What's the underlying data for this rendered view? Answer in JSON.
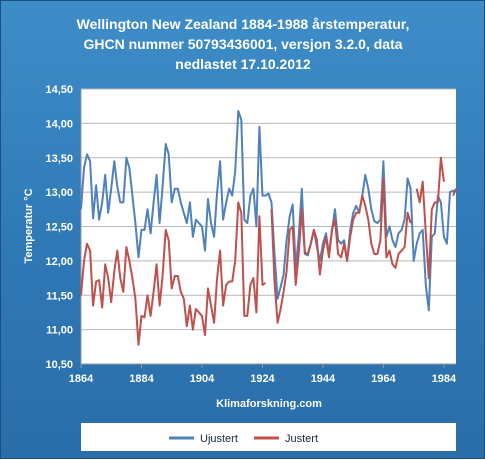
{
  "chart_data": {
    "type": "line",
    "title_lines": [
      "Wellington New Zealand 1884-1988 årstemperatur,",
      "GHCN nummer 50793436001, versjon 3.2.0,  data",
      "nedlastet 17.10.2012"
    ],
    "xlabel": "Klimaforskning.com",
    "ylabel": "Temperatur °C",
    "xlim": [
      1864,
      1988
    ],
    "ylim": [
      10.5,
      14.5
    ],
    "x_ticks": [
      "1864",
      "1884",
      "1904",
      "1924",
      "1944",
      "1964",
      "1984"
    ],
    "y_ticks": [
      "10,50",
      "11,00",
      "11,50",
      "12,00",
      "12,50",
      "13,00",
      "13,50",
      "14,00",
      "14,50"
    ],
    "grid": true,
    "legend_position": "bottom",
    "series": [
      {
        "name": "Ujustert",
        "color": "#4f81bd",
        "points": [
          [
            1864,
            12.75
          ],
          [
            1865,
            13.35
          ],
          [
            1866,
            13.55
          ],
          [
            1867,
            13.45
          ],
          [
            1868,
            12.62
          ],
          [
            1869,
            13.1
          ],
          [
            1870,
            12.6
          ],
          [
            1871,
            12.85
          ],
          [
            1872,
            13.25
          ],
          [
            1873,
            12.7
          ],
          [
            1874,
            13.05
          ],
          [
            1875,
            13.45
          ],
          [
            1876,
            13.08
          ],
          [
            1877,
            12.85
          ],
          [
            1878,
            12.85
          ],
          [
            1879,
            13.5
          ],
          [
            1880,
            13.35
          ],
          [
            1881,
            12.95
          ],
          [
            1882,
            12.55
          ],
          [
            1883,
            12.05
          ],
          [
            1884,
            12.45
          ],
          [
            1885,
            12.45
          ],
          [
            1886,
            12.75
          ],
          [
            1887,
            12.4
          ],
          [
            1888,
            12.85
          ],
          [
            1889,
            13.25
          ],
          [
            1890,
            12.55
          ],
          [
            1891,
            13.1
          ],
          [
            1892,
            13.7
          ],
          [
            1893,
            13.55
          ],
          [
            1894,
            12.85
          ],
          [
            1895,
            13.05
          ],
          [
            1896,
            13.05
          ],
          [
            1897,
            12.85
          ],
          [
            1898,
            12.7
          ],
          [
            1899,
            12.55
          ],
          [
            1900,
            12.85
          ],
          [
            1901,
            12.35
          ],
          [
            1902,
            12.6
          ],
          [
            1903,
            12.55
          ],
          [
            1904,
            12.5
          ],
          [
            1905,
            12.15
          ],
          [
            1906,
            12.9
          ],
          [
            1907,
            12.55
          ],
          [
            1908,
            12.35
          ],
          [
            1909,
            13.0
          ],
          [
            1910,
            13.45
          ],
          [
            1911,
            12.6
          ],
          [
            1912,
            12.85
          ],
          [
            1913,
            13.05
          ],
          [
            1914,
            12.95
          ],
          [
            1915,
            13.3
          ],
          [
            1916,
            14.18
          ],
          [
            1917,
            14.05
          ],
          [
            1918,
            12.6
          ],
          [
            1919,
            12.55
          ],
          [
            1920,
            12.95
          ],
          [
            1921,
            13.05
          ],
          [
            1922,
            12.5
          ],
          [
            1923,
            13.95
          ],
          [
            1924,
            12.95
          ],
          [
            1925,
            12.95
          ],
          [
            1926,
            12.98
          ],
          [
            1927,
            12.85
          ],
          [
            1928,
            12.1
          ],
          [
            1929,
            11.45
          ],
          [
            1930,
            11.62
          ],
          [
            1931,
            11.8
          ],
          [
            1932,
            12.3
          ],
          [
            1933,
            12.65
          ],
          [
            1934,
            12.82
          ],
          [
            1935,
            11.9
          ],
          [
            1936,
            12.35
          ],
          [
            1937,
            13.05
          ],
          [
            1938,
            12.1
          ],
          [
            1939,
            12.08
          ],
          [
            1940,
            12.25
          ],
          [
            1941,
            12.45
          ],
          [
            1942,
            12.2
          ],
          [
            1943,
            12.0
          ],
          [
            1944,
            12.25
          ],
          [
            1945,
            12.4
          ],
          [
            1946,
            12.1
          ],
          [
            1947,
            12.45
          ],
          [
            1948,
            12.75
          ],
          [
            1949,
            12.3
          ],
          [
            1950,
            12.25
          ],
          [
            1951,
            12.3
          ],
          [
            1952,
            12.0
          ],
          [
            1953,
            12.45
          ],
          [
            1954,
            12.7
          ],
          [
            1955,
            12.8
          ],
          [
            1956,
            12.7
          ],
          [
            1957,
            12.95
          ],
          [
            1958,
            13.25
          ],
          [
            1959,
            13.05
          ],
          [
            1960,
            12.75
          ],
          [
            1961,
            12.58
          ],
          [
            1962,
            12.55
          ],
          [
            1963,
            12.6
          ],
          [
            1964,
            13.45
          ],
          [
            1965,
            12.35
          ],
          [
            1966,
            12.5
          ],
          [
            1967,
            12.3
          ],
          [
            1968,
            12.2
          ],
          [
            1969,
            12.4
          ],
          [
            1970,
            12.45
          ],
          [
            1971,
            12.6
          ],
          [
            1972,
            13.2
          ],
          [
            1973,
            13.05
          ],
          [
            1974,
            12.0
          ],
          [
            1975,
            12.25
          ],
          [
            1976,
            12.4
          ],
          [
            1977,
            12.45
          ],
          [
            1978,
            11.65
          ],
          [
            1979,
            11.28
          ],
          [
            1980,
            12.35
          ],
          [
            1981,
            12.4
          ],
          [
            1982,
            12.95
          ],
          [
            1983,
            12.85
          ],
          [
            1984,
            12.35
          ],
          [
            1985,
            12.25
          ],
          [
            1986,
            13.0
          ],
          [
            1987,
            13.02
          ],
          [
            1988,
            13.02
          ]
        ]
      },
      {
        "name": "Justert",
        "color": "#c0504d",
        "points": [
          [
            1864,
            11.5
          ],
          [
            1865,
            12.0
          ],
          [
            1866,
            12.25
          ],
          [
            1867,
            12.15
          ],
          [
            1868,
            11.35
          ],
          [
            1869,
            11.7
          ],
          [
            1870,
            11.72
          ],
          [
            1871,
            11.32
          ],
          [
            1872,
            11.95
          ],
          [
            1873,
            11.75
          ],
          [
            1874,
            11.4
          ],
          [
            1875,
            11.85
          ],
          [
            1876,
            12.15
          ],
          [
            1877,
            11.75
          ],
          [
            1878,
            11.55
          ],
          [
            1879,
            12.2
          ],
          [
            1880,
            12.0
          ],
          [
            1881,
            11.75
          ],
          [
            1882,
            11.45
          ],
          [
            1883,
            10.78
          ],
          [
            1884,
            11.2
          ],
          [
            1885,
            11.18
          ],
          [
            1886,
            11.5
          ],
          [
            1887,
            11.2
          ],
          [
            1888,
            11.55
          ],
          [
            1889,
            11.95
          ],
          [
            1890,
            11.35
          ],
          [
            1891,
            11.8
          ],
          [
            1892,
            12.45
          ],
          [
            1893,
            12.3
          ],
          [
            1894,
            11.6
          ],
          [
            1895,
            11.78
          ],
          [
            1896,
            11.78
          ],
          [
            1897,
            11.55
          ],
          [
            1898,
            11.45
          ],
          [
            1899,
            11.05
          ],
          [
            1900,
            11.35
          ],
          [
            1901,
            11.0
          ],
          [
            1902,
            11.3
          ],
          [
            1903,
            11.25
          ],
          [
            1904,
            11.2
          ],
          [
            1905,
            10.92
          ],
          [
            1906,
            11.6
          ],
          [
            1907,
            11.35
          ],
          [
            1908,
            11.1
          ],
          [
            1909,
            11.75
          ],
          [
            1910,
            12.15
          ],
          [
            1911,
            11.35
          ],
          [
            1912,
            11.65
          ],
          [
            1913,
            11.7
          ],
          [
            1914,
            11.7
          ],
          [
            1915,
            12.0
          ],
          [
            1916,
            12.85
          ],
          [
            1917,
            12.7
          ],
          [
            1918,
            11.2
          ],
          [
            1919,
            11.2
          ],
          [
            1920,
            11.65
          ],
          [
            1921,
            11.75
          ],
          [
            1922,
            11.25
          ],
          [
            1923,
            12.65
          ],
          [
            1924,
            11.65
          ],
          [
            1925,
            11.68
          ],
          [
            1926,
            null
          ],
          [
            1927,
            12.75
          ],
          [
            1928,
            11.7
          ],
          [
            1929,
            11.1
          ],
          [
            1930,
            11.3
          ],
          [
            1931,
            11.55
          ],
          [
            1932,
            11.85
          ],
          [
            1933,
            12.45
          ],
          [
            1934,
            12.5
          ],
          [
            1935,
            11.65
          ],
          [
            1936,
            12.1
          ],
          [
            1937,
            12.75
          ],
          [
            1938,
            12.12
          ],
          [
            1939,
            12.1
          ],
          [
            1940,
            12.25
          ],
          [
            1941,
            12.45
          ],
          [
            1942,
            12.3
          ],
          [
            1943,
            11.8
          ],
          [
            1944,
            12.15
          ],
          [
            1945,
            12.35
          ],
          [
            1946,
            12.05
          ],
          [
            1947,
            12.45
          ],
          [
            1948,
            12.6
          ],
          [
            1949,
            12.1
          ],
          [
            1950,
            12.05
          ],
          [
            1951,
            12.25
          ],
          [
            1952,
            12.0
          ],
          [
            1953,
            12.35
          ],
          [
            1954,
            12.6
          ],
          [
            1955,
            12.7
          ],
          [
            1956,
            12.7
          ],
          [
            1957,
            12.95
          ],
          [
            1958,
            12.8
          ],
          [
            1959,
            12.6
          ],
          [
            1960,
            12.25
          ],
          [
            1961,
            12.1
          ],
          [
            1962,
            12.1
          ],
          [
            1963,
            12.3
          ],
          [
            1964,
            13.2
          ],
          [
            1965,
            12.05
          ],
          [
            1966,
            12.15
          ],
          [
            1967,
            11.95
          ],
          [
            1968,
            11.9
          ],
          [
            1969,
            12.1
          ],
          [
            1970,
            12.15
          ],
          [
            1971,
            12.2
          ],
          [
            1972,
            12.7
          ],
          [
            1973,
            12.55
          ],
          [
            1974,
            null
          ],
          [
            1975,
            13.05
          ],
          [
            1976,
            12.85
          ],
          [
            1977,
            13.15
          ],
          [
            1978,
            12.4
          ],
          [
            1979,
            11.75
          ],
          [
            1980,
            12.75
          ],
          [
            1981,
            12.85
          ],
          [
            1982,
            12.85
          ],
          [
            1983,
            13.5
          ],
          [
            1984,
            13.15
          ],
          [
            1985,
            null
          ],
          [
            1986,
            null
          ],
          [
            1987,
            12.95
          ],
          [
            1988,
            13.05
          ]
        ]
      }
    ]
  }
}
